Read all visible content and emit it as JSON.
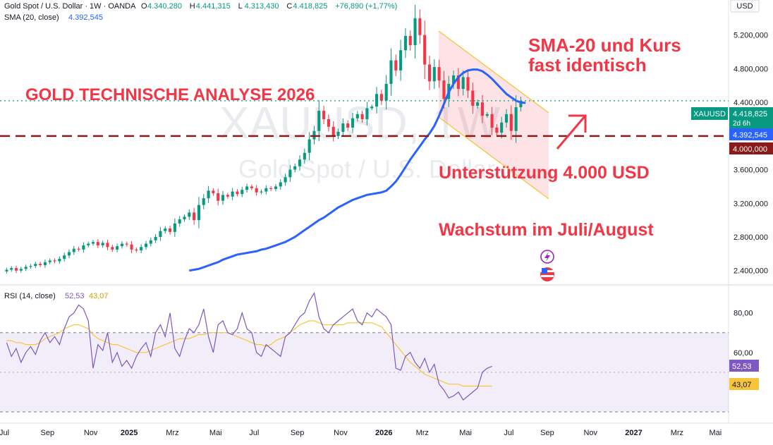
{
  "header": {
    "symbol_line": "Gold Spot / U.S. Dollar · 1W · OANDA",
    "ohlc": [
      {
        "k": "O",
        "v": "4.340,280"
      },
      {
        "k": "H",
        "v": "4.441,315"
      },
      {
        "k": "L",
        "v": "4.313,430"
      },
      {
        "k": "C",
        "v": "4.418,825"
      }
    ],
    "change": "+76,890 (+1,77%)",
    "sma_label": "SMA (20, close)",
    "sma_value": "4.392,545",
    "currency": "USD"
  },
  "watermark": {
    "ticker": "XAUUSD, 1W",
    "name": "Gold Spot / U.S. Dollar"
  },
  "annotations": {
    "title": "GOLD TECHNISCHE ANALYSE 2026",
    "sma_note_line1": "SMA-20 und Kurs",
    "sma_note_line2": "fast identisch",
    "support": "Unterstützung 4.000 USD",
    "growth": "Wachstum im Juli/August"
  },
  "price_labels": {
    "symbol": "XAUUSD",
    "last": "4.418,825",
    "countdown": "2d 6h",
    "sma": "4.392,545",
    "support": "4.000,000"
  },
  "rsi": {
    "label": "RSI (14, close)",
    "value": "52,53",
    "ma_value": "43,07"
  },
  "colors": {
    "up": "#089981",
    "down": "#f23645",
    "sma": "#2962ff",
    "rsi": "#7e57c2",
    "rsi_ma": "#f7c53a",
    "annotation": "#f23645",
    "support_line": "#8b1a1a"
  },
  "chart_data": [
    {
      "type": "candlestick",
      "title": "Gold Spot / U.S. Dollar · 1W · OANDA",
      "xlabel": "",
      "ylabel": "USD",
      "ylim": [
        2280000,
        5550000
      ],
      "y_ticks": [
        "5.200,000",
        "4.800,000",
        "4.400,000",
        "4.000,000",
        "3.600,000",
        "3.200,000",
        "2.800,000",
        "2.400,000"
      ],
      "y_tick_values": [
        5200000,
        4800000,
        4400000,
        4000000,
        3600000,
        3200000,
        2800000,
        2400000
      ],
      "x_ticks": [
        "Jul",
        "Sep",
        "Nov",
        "2025",
        "Mrz",
        "Mai",
        "Jul",
        "Sep",
        "Nov",
        "2026",
        "Mrz",
        "Mai",
        "Jul",
        "Sep",
        "Nov",
        "2027",
        "Mrz",
        "Mai"
      ],
      "x_tick_weeks": [
        0,
        9,
        18,
        26,
        35,
        44,
        52,
        61,
        70,
        79,
        87,
        96,
        105,
        113,
        122,
        131,
        140,
        148
      ],
      "weeks_total": 150,
      "close": [
        2410000,
        2430000,
        2400000,
        2420000,
        2445000,
        2455000,
        2480000,
        2465000,
        2500000,
        2520000,
        2510000,
        2540000,
        2580000,
        2620000,
        2660000,
        2650000,
        2700000,
        2720000,
        2740000,
        2700000,
        2730000,
        2680000,
        2650000,
        2690000,
        2720000,
        2710000,
        2650000,
        2640000,
        2680000,
        2720000,
        2760000,
        2800000,
        2870000,
        2900000,
        2860000,
        2960000,
        3010000,
        3040000,
        3090000,
        3000000,
        3180000,
        3260000,
        3350000,
        3320000,
        3230000,
        3300000,
        3280000,
        3340000,
        3310000,
        3360000,
        3400000,
        3380000,
        3330000,
        3340000,
        3380000,
        3370000,
        3400000,
        3450000,
        3510000,
        3600000,
        3640000,
        3720000,
        3800000,
        3960000,
        4060000,
        4300000,
        4200000,
        4110000,
        4000000,
        4050000,
        4150000,
        4100000,
        4210000,
        4260000,
        4200000,
        4330000,
        4350000,
        4500000,
        4420000,
        4620000,
        4900000,
        4780000,
        5020000,
        5190000,
        5080000,
        5400000,
        5200000,
        4850000,
        4650000,
        4820000,
        4660000,
        4440000,
        4620000,
        4720000,
        4560000,
        4700000,
        4540000,
        4360000,
        4400000,
        4240000,
        4260000,
        4100000,
        4040000,
        4160000,
        4260000,
        4060000,
        4342000,
        4418825
      ],
      "sma20": {
        "name": "SMA (20, close)",
        "values": [
          2400000,
          2410000,
          2420000,
          2440000,
          2460000,
          2480000,
          2500000,
          2530000,
          2550000,
          2570000,
          2590000,
          2600000,
          2610000,
          2620000,
          2630000,
          2650000,
          2660000,
          2680000,
          2700000,
          2720000,
          2740000,
          2770000,
          2800000,
          2840000,
          2880000,
          2920000,
          2960000,
          3000000,
          3030000,
          3070000,
          3110000,
          3150000,
          3180000,
          3210000,
          3240000,
          3260000,
          3280000,
          3300000,
          3310000,
          3320000,
          3330000,
          3350000,
          3400000,
          3460000,
          3540000,
          3630000,
          3720000,
          3800000,
          3880000,
          3960000,
          4030000,
          4120000,
          4240000,
          4380000,
          4520000,
          4620000,
          4700000,
          4750000,
          4780000,
          4790000,
          4790000,
          4770000,
          4730000,
          4680000,
          4620000,
          4560000,
          4500000,
          4460000,
          4420000,
          4400000,
          4392545
        ]
      },
      "sma20_start_week": 38,
      "horizontal_lines": [
        4000000,
        4418825
      ]
    },
    {
      "type": "line",
      "title": "RSI (14, close)",
      "ylim": [
        25,
        92
      ],
      "y_ticks": [
        "80,00",
        "60,00"
      ],
      "y_tick_values": [
        80,
        60
      ],
      "band": [
        70,
        30
      ],
      "series": [
        {
          "name": "RSI (14, close)",
          "values": [
            65,
            58,
            62,
            55,
            60,
            63,
            59,
            66,
            70,
            65,
            68,
            64,
            72,
            78,
            80,
            84,
            82,
            76,
            52,
            64,
            61,
            70,
            55,
            60,
            53,
            56,
            52,
            58,
            62,
            65,
            58,
            70,
            74,
            68,
            80,
            62,
            58,
            66,
            72,
            70,
            74,
            82,
            68,
            60,
            74,
            76,
            70,
            69,
            72,
            80,
            72,
            70,
            60,
            58,
            64,
            62,
            60,
            58,
            68,
            70,
            74,
            78,
            80,
            86,
            90,
            78,
            72,
            70,
            74,
            76,
            78,
            80,
            82,
            76,
            74,
            80,
            78,
            82,
            80,
            78,
            74,
            52,
            51,
            58,
            60,
            55,
            52,
            57,
            50,
            54,
            44,
            41,
            37,
            38,
            40,
            36,
            38,
            40,
            42,
            50,
            52,
            53
          ]
        },
        {
          "name": "",
          "values": [
            66,
            66,
            65,
            65,
            64,
            64,
            64,
            65,
            67,
            68,
            69,
            70,
            72,
            73,
            74,
            74,
            73,
            72,
            69,
            67,
            66,
            65,
            64,
            64,
            63,
            62,
            61,
            60,
            60,
            60,
            61,
            62,
            63,
            64,
            65,
            66,
            67,
            67,
            67,
            68,
            69,
            69,
            70,
            70,
            70,
            70,
            70,
            69,
            68,
            67,
            66,
            65,
            64,
            64,
            63,
            64,
            66,
            67,
            68,
            70,
            72,
            74,
            75,
            76,
            76,
            75,
            74,
            74,
            74,
            74,
            74,
            75,
            75,
            75,
            75,
            75,
            75,
            74,
            73,
            70,
            67,
            64,
            61,
            58,
            55,
            53,
            51,
            49,
            48,
            47,
            46,
            45,
            44,
            44,
            44,
            43,
            43,
            43,
            43,
            43,
            43,
            43
          ]
        }
      ],
      "start_week": 0
    }
  ]
}
